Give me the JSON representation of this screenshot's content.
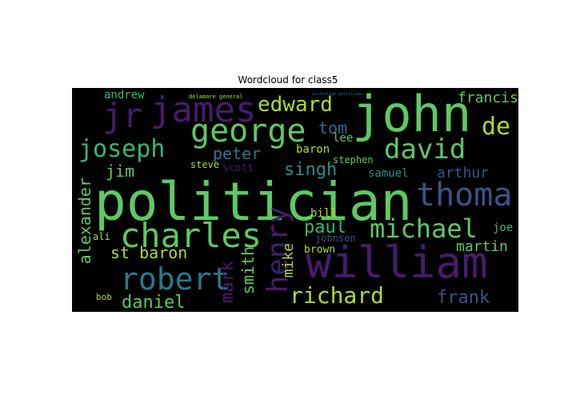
{
  "title": "Wordcloud for class5",
  "words": {
    "politician": "politician",
    "william": "william",
    "john": "john",
    "james": "james",
    "george": "george",
    "jr": "jr",
    "edward": "edward",
    "joseph": "joseph",
    "david": "david",
    "thoma": "thoma",
    "charles": "charles",
    "robert": "robert",
    "michael": "michael",
    "henry": "henry",
    "richard": "richard",
    "de": "de",
    "paul": "paul",
    "frank": "frank",
    "daniel": "daniel",
    "peter": "peter",
    "tom": "tom",
    "jim": "jim",
    "singh": "singh",
    "alexander": "alexander",
    "arthur": "arthur",
    "st_baron": "st baron",
    "mark": "mark",
    "smith": "smith",
    "mike": "mike",
    "martin": "martin",
    "francis": "francis",
    "andrew": "andrew",
    "baron": "baron",
    "samuel": "samuel",
    "bill": "bill",
    "joe": "joe",
    "ali": "ali",
    "brown": "brown",
    "johnson": "johnson",
    "stephen": "stephen",
    "lee": "lee",
    "scott": "scott",
    "steve": "steve",
    "bob": "bob",
    "delamare_general": "delamare general",
    "australian_politician": "australian politician"
  },
  "colors": {
    "background": "#000000",
    "purple": "#481b6d",
    "green": "#5ec962",
    "teal": "#2a788e",
    "blue": "#31688e",
    "lime": "#addc30",
    "dkblue": "#3b528b",
    "cyan": "#21918c",
    "seafoam": "#35b779"
  }
}
